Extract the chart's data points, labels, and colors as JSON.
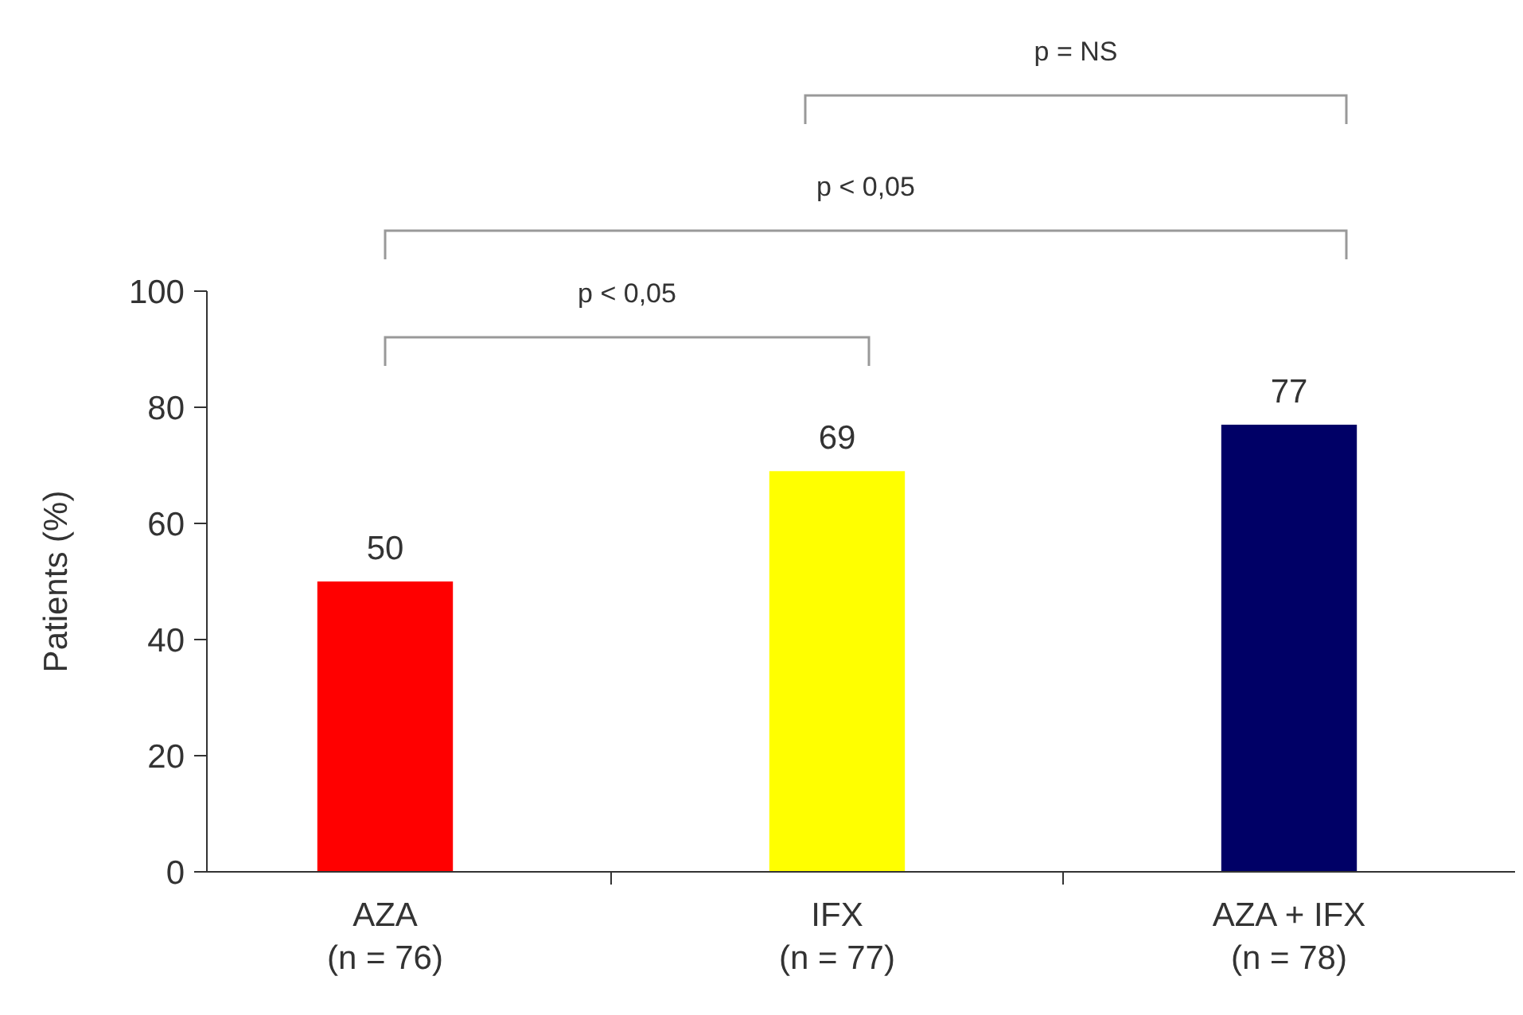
{
  "chart_data": {
    "type": "bar",
    "ylabel": "Patients (%)",
    "categories": [
      "AZA\n(n = 76)",
      "IFX\n(n = 77)",
      "AZA + IFX\n(n = 78)"
    ],
    "values": [
      50,
      69,
      77
    ],
    "colors": [
      "#ff0000",
      "#ffff00",
      "#000066"
    ],
    "ylim": [
      0,
      100
    ],
    "yticks": [
      0,
      20,
      40,
      60,
      80,
      100
    ],
    "data_labels": true,
    "grid": false,
    "annotations": [
      "p = NS",
      "p < 0,05",
      "p < 0,05"
    ]
  }
}
